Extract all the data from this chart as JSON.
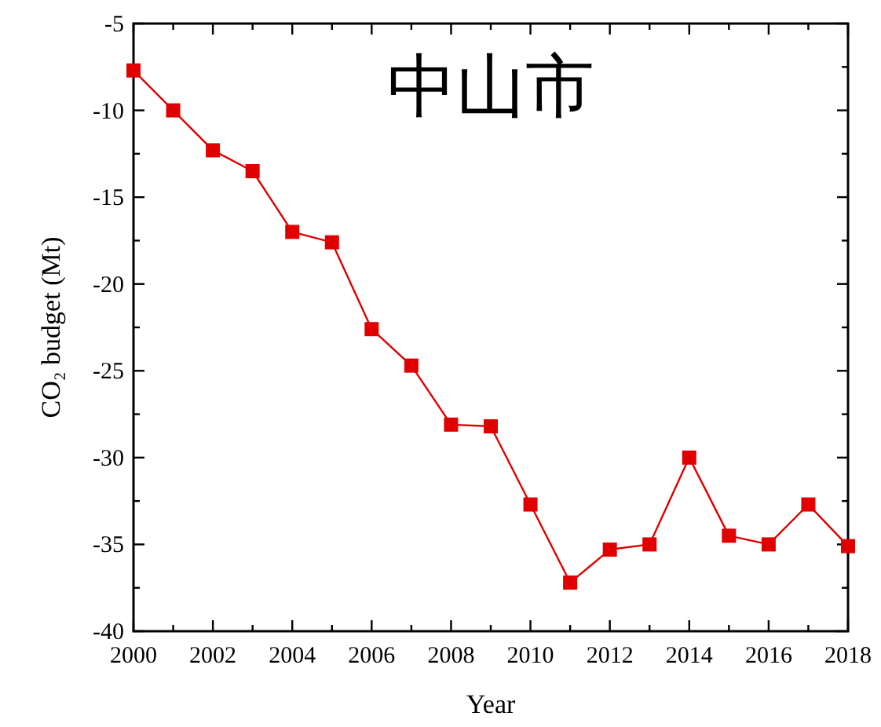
{
  "chart_data": {
    "type": "line",
    "title": "中山市",
    "xlabel": "Year",
    "ylabel": "CO₂ budget (Mt)",
    "x": [
      2000,
      2001,
      2002,
      2003,
      2004,
      2005,
      2006,
      2007,
      2008,
      2009,
      2010,
      2011,
      2012,
      2013,
      2014,
      2015,
      2016,
      2017,
      2018
    ],
    "series": [
      {
        "color": "#e00000",
        "values": [
          -7.7,
          -10.0,
          -12.3,
          -13.5,
          -17.0,
          -17.6,
          -22.6,
          -24.7,
          -28.1,
          -28.2,
          -32.7,
          -37.2,
          -35.3,
          -35.0,
          -30.0,
          -34.5,
          -35.0,
          -32.7,
          -35.1
        ]
      }
    ],
    "xlim": [
      2000,
      2018
    ],
    "ylim": [
      -40,
      -5
    ],
    "xticks": [
      2000,
      {
        "value": 2001,
        "label": null
      },
      2002,
      {
        "value": 2003,
        "label": null
      },
      2004,
      {
        "value": 2005,
        "label": null
      },
      2006,
      {
        "value": 2007,
        "label": null
      },
      2008,
      {
        "value": 2009,
        "label": null
      },
      2010,
      {
        "value": 2011,
        "label": null
      },
      2012,
      {
        "value": 2013,
        "label": null
      },
      2014,
      {
        "value": 2015,
        "label": null
      },
      2016,
      {
        "value": 2017,
        "label": null
      },
      2018
    ],
    "yticks": [
      -40,
      {
        "value": -37.5,
        "label": null
      },
      -35,
      {
        "value": -32.5,
        "label": null
      },
      -30,
      {
        "value": -27.5,
        "label": null
      },
      -25,
      {
        "value": -22.5,
        "label": null
      },
      -20,
      {
        "value": -17.5,
        "label": null
      },
      -15,
      {
        "value": -12.5,
        "label": null
      },
      -10,
      {
        "value": -7.5,
        "label": null
      },
      -5
    ],
    "marker": "square",
    "line_style": "solid"
  }
}
